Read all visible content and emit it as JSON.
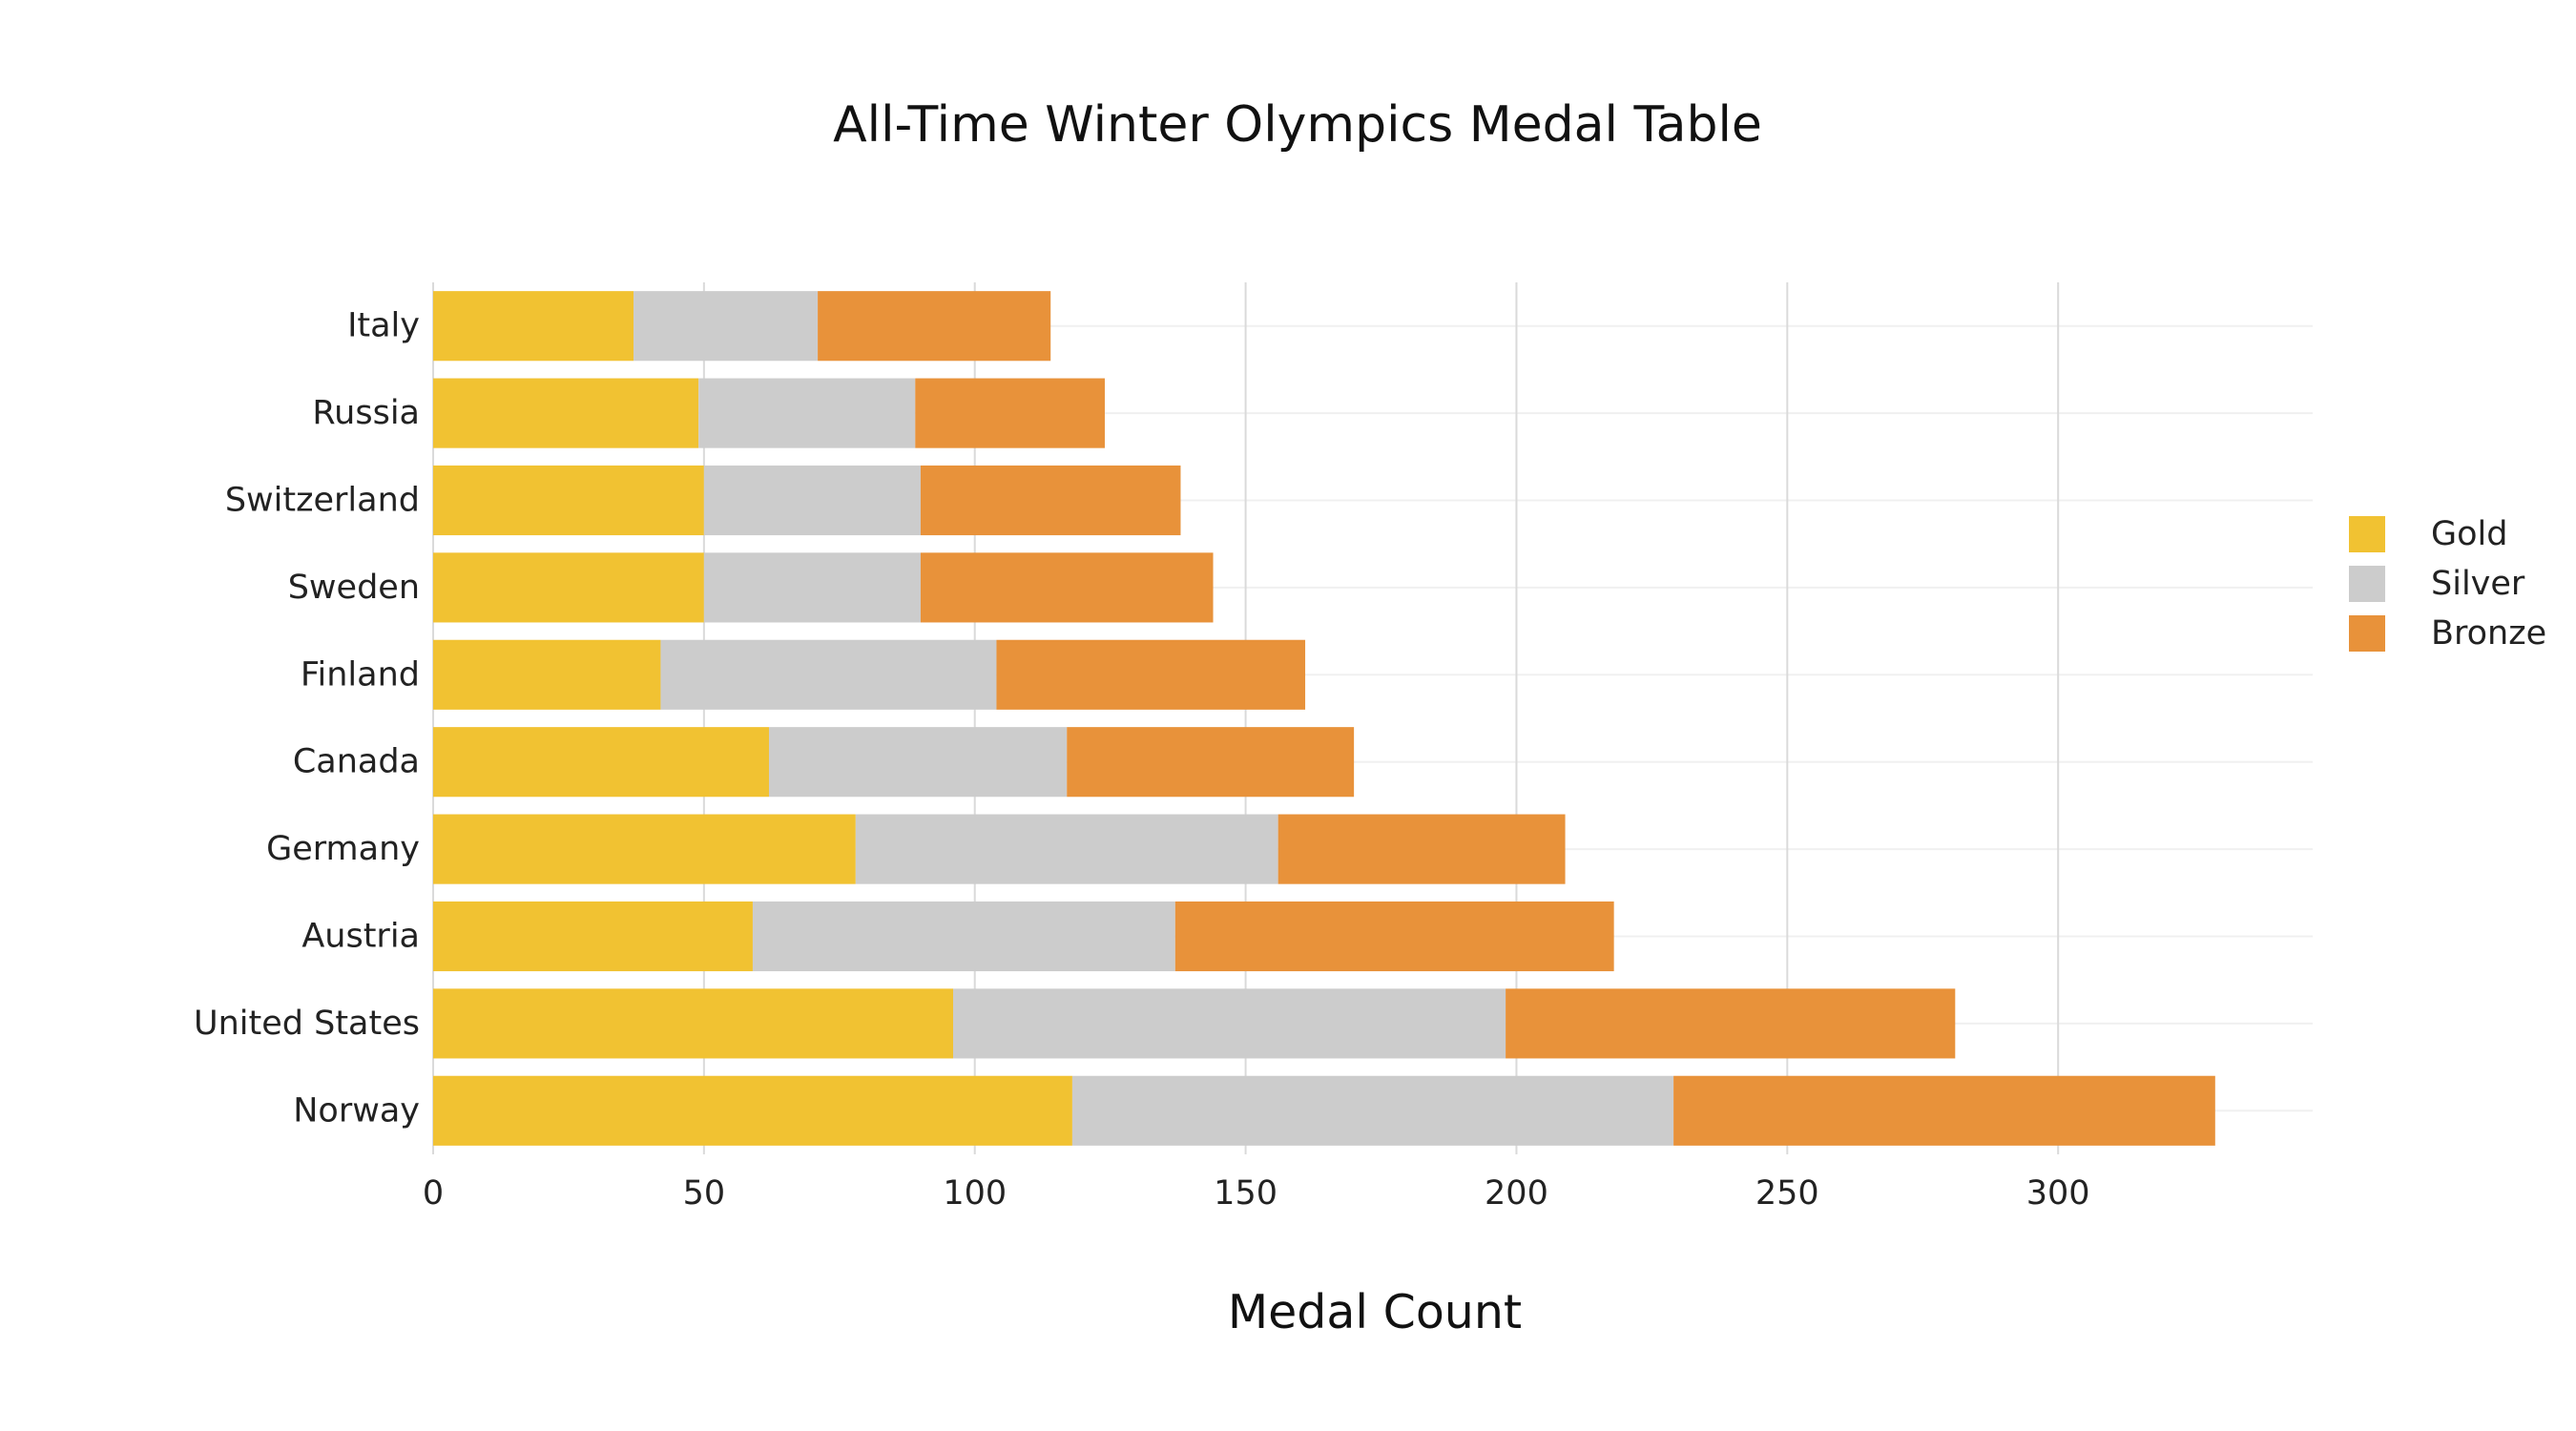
{
  "chart_data": {
    "type": "bar",
    "orientation": "horizontal",
    "stacked": true,
    "title": "All-Time Winter Olympics Medal Table",
    "xlabel": "Medal Count",
    "ylabel": "",
    "xlim": [
      0,
      347
    ],
    "x_ticks": [
      0,
      50,
      100,
      150,
      200,
      250,
      300
    ],
    "grid": true,
    "legend_position": "right",
    "categories": [
      "Norway",
      "United States",
      "Austria",
      "Germany",
      "Canada",
      "Finland",
      "Sweden",
      "Switzerland",
      "Russia",
      "Italy"
    ],
    "series": [
      {
        "name": "Gold",
        "color": "#F1C232",
        "values": [
          118,
          96,
          59,
          78,
          62,
          42,
          50,
          50,
          49,
          37
        ]
      },
      {
        "name": "Silver",
        "color": "#CCCCCC",
        "values": [
          111,
          102,
          78,
          78,
          55,
          62,
          40,
          40,
          40,
          34
        ]
      },
      {
        "name": "Bronze",
        "color": "#E8923A",
        "values": [
          100,
          83,
          81,
          53,
          53,
          57,
          54,
          48,
          35,
          43
        ]
      }
    ]
  }
}
